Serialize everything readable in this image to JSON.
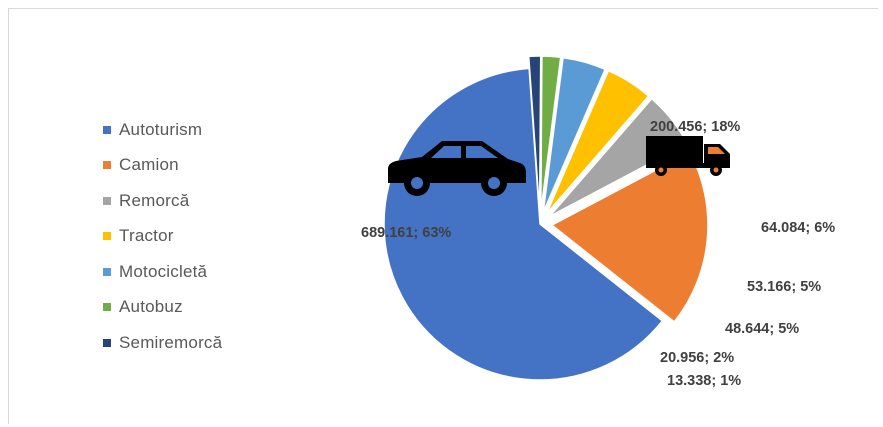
{
  "chart_data": {
    "type": "pie",
    "title": "",
    "categories": [
      "Autoturism",
      "Camion",
      "Remorcă",
      "Tractor",
      "Motocicletă",
      "Autobuz",
      "Semiremorcă"
    ],
    "values": [
      689161,
      200456,
      64084,
      53166,
      48644,
      20956,
      13338
    ],
    "colors": [
      "#4472C4",
      "#ED7D31",
      "#A5A5A5",
      "#FFC000",
      "#5B9BD5",
      "#70AD47",
      "#264478"
    ],
    "data_labels": [
      "689.161; 63%",
      "200.456; 18%",
      "64.084; 6%",
      "53.166; 5%",
      "48.644; 5%",
      "20.956; 2%",
      "13.338; 1%"
    ],
    "exploded": true,
    "legend_position": "left",
    "icons": [
      "car-icon",
      "truck-icon"
    ]
  }
}
